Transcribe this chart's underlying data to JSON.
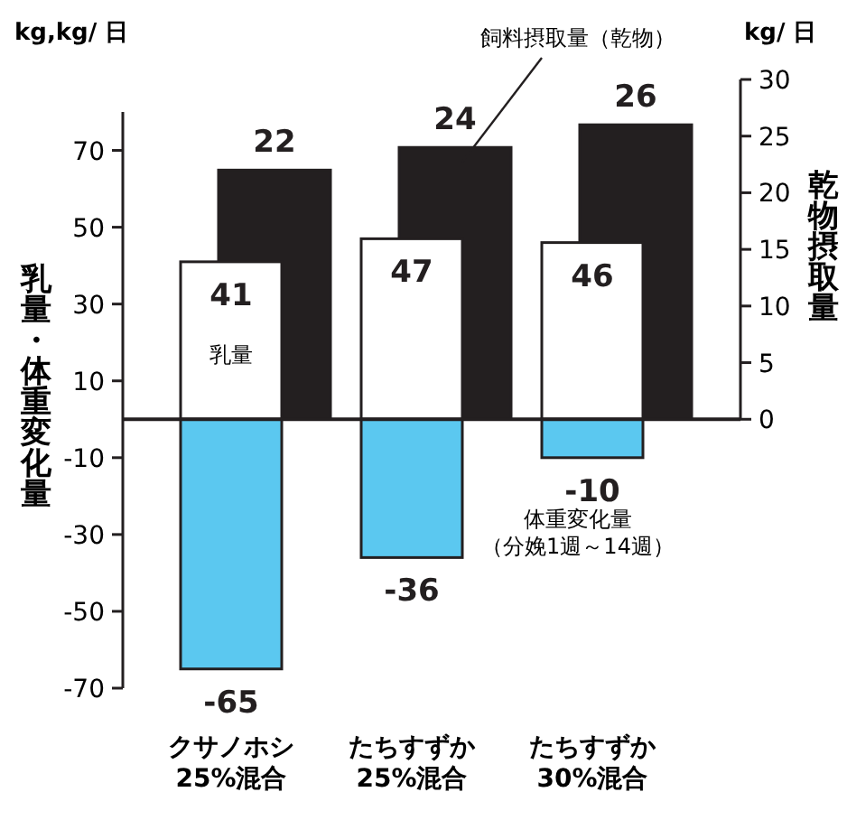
{
  "chart_data": {
    "type": "bar",
    "categories": [
      "クサノホシ\n25%混合",
      "たちすずか\n25%混合",
      "たちすずか\n30%混合"
    ],
    "series": [
      {
        "name": "飼料摂取量（乾物）",
        "color": "#231f20",
        "values": [
          22,
          24,
          26
        ],
        "axis": "y2"
      },
      {
        "name": "乳量",
        "color": "#ffffff",
        "values": [
          41,
          47,
          46
        ]
      },
      {
        "name": "体重変化量（分娩1週～14週）",
        "color": "#5bc8f0",
        "values": [
          -65,
          -36,
          -10
        ]
      }
    ],
    "ylabel": "乳量・体重変化量",
    "y2label": "乾物摂取量",
    "ylim": [
      -70,
      80
    ],
    "yticks": [
      70,
      50,
      30,
      10,
      -10,
      -30,
      -50,
      -70
    ],
    "y2lim": [
      0,
      30
    ],
    "y2ticks": [
      0,
      5,
      10,
      15,
      20,
      25,
      30
    ],
    "data_labels": true,
    "stacked": true,
    "annotations": [
      "kg,kg/ 日",
      "kg/ 日"
    ]
  }
}
